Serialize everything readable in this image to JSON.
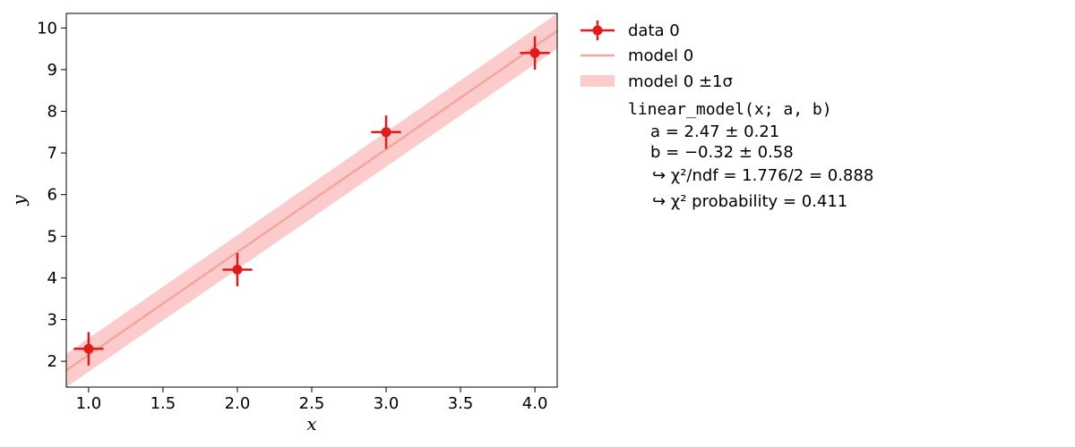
{
  "chart_data": {
    "type": "scatter",
    "title": "",
    "xlabel": "x",
    "ylabel": "y",
    "xlim": [
      0.85,
      4.15
    ],
    "ylim": [
      1.38,
      10.35
    ],
    "x_ticks": [
      "1.0",
      "1.5",
      "2.0",
      "2.5",
      "3.0",
      "3.5",
      "4.0"
    ],
    "y_ticks": [
      "2",
      "3",
      "4",
      "5",
      "6",
      "7",
      "8",
      "9",
      "10"
    ],
    "grid": false,
    "legend_position": "outside-right",
    "series": [
      {
        "name": "data 0",
        "kind": "errorbar",
        "color": "#e31a1c",
        "x": [
          1.0,
          2.0,
          3.0,
          4.0
        ],
        "y": [
          2.3,
          4.2,
          7.5,
          9.4
        ],
        "xerr": [
          0.1,
          0.1,
          0.1,
          0.1
        ],
        "yerr": [
          0.4,
          0.4,
          0.4,
          0.4
        ]
      },
      {
        "name": "model 0",
        "kind": "line",
        "color": "#f4a59c",
        "a": 2.47,
        "b": -0.32
      },
      {
        "name": "model 0 ±1σ",
        "kind": "band",
        "color": "#fbcccb",
        "lower": [
          1.38,
          9.5
        ],
        "upper": [
          2.18,
          10.35
        ]
      }
    ],
    "fit_info": {
      "function": "linear_model(x; a, b)",
      "lines": [
        "a = 2.47 ± 0.21",
        "b = −0.32 ± 0.58",
        "↪ χ²/ndf = 1.776/2 = 0.888",
        "↪ χ² probability = 0.411"
      ]
    }
  }
}
